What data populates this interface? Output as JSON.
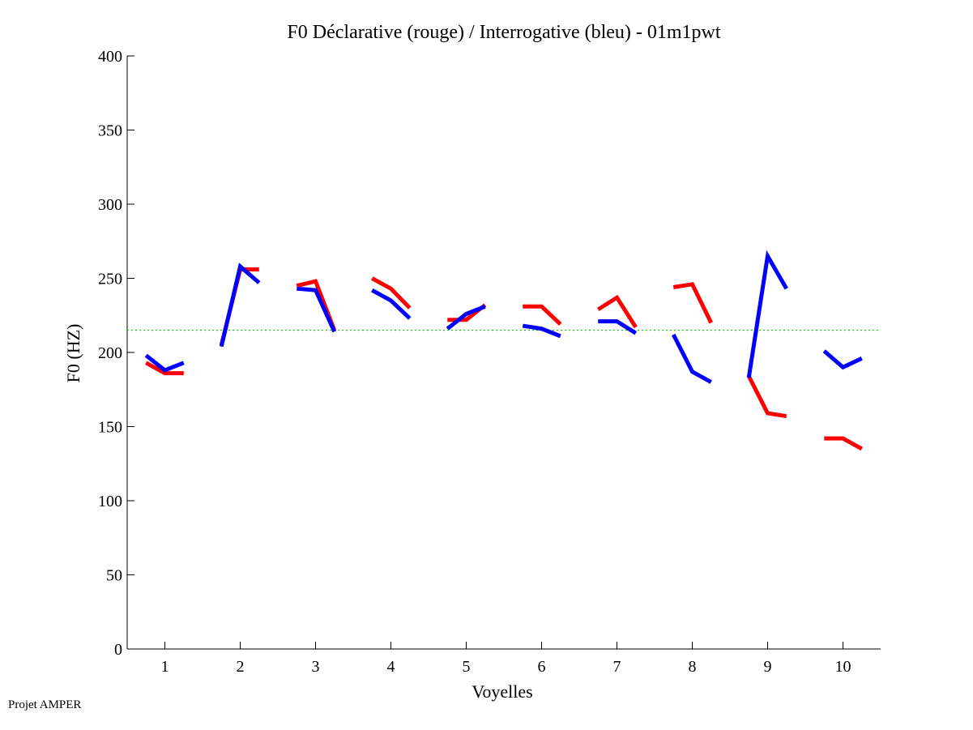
{
  "chart_data": {
    "type": "line",
    "title": "F0 Déclarative (rouge) / Interrogative (bleu) - 01m1pwt",
    "xlabel": "Voyelles",
    "ylabel": "F0 (HZ)",
    "xlim": [
      0.5,
      10.5
    ],
    "ylim": [
      0,
      400
    ],
    "xticks": [
      1,
      2,
      3,
      4,
      5,
      6,
      7,
      8,
      9,
      10
    ],
    "yticks": [
      0,
      50,
      100,
      150,
      200,
      250,
      300,
      350,
      400
    ],
    "reference_line": {
      "value": 215,
      "color": "#00cc00",
      "style": "dotted"
    },
    "point_offsets": [
      -0.25,
      0,
      0.25
    ],
    "series": [
      {
        "name": "Déclarative (rouge)",
        "color": "#ff0000",
        "values": [
          [
            193,
            186,
            186
          ],
          [
            205,
            256,
            256
          ],
          [
            245,
            248,
            215
          ],
          [
            250,
            243,
            230
          ],
          [
            222,
            222,
            232
          ],
          [
            231,
            231,
            219
          ],
          [
            229,
            237,
            217
          ],
          [
            244,
            246,
            220
          ],
          [
            184,
            159,
            157
          ],
          [
            142,
            142,
            135
          ]
        ]
      },
      {
        "name": "Interrogative (bleu)",
        "color": "#0000ff",
        "values": [
          [
            198,
            188,
            193
          ],
          [
            204,
            258,
            247
          ],
          [
            243,
            242,
            214
          ],
          [
            242,
            235,
            223
          ],
          [
            216,
            226,
            231
          ],
          [
            218,
            216,
            211
          ],
          [
            221,
            221,
            213
          ],
          [
            212,
            187,
            180
          ],
          [
            183,
            265,
            243
          ],
          [
            201,
            190,
            196
          ]
        ]
      }
    ],
    "grid": false
  },
  "footer": "Projet AMPER"
}
